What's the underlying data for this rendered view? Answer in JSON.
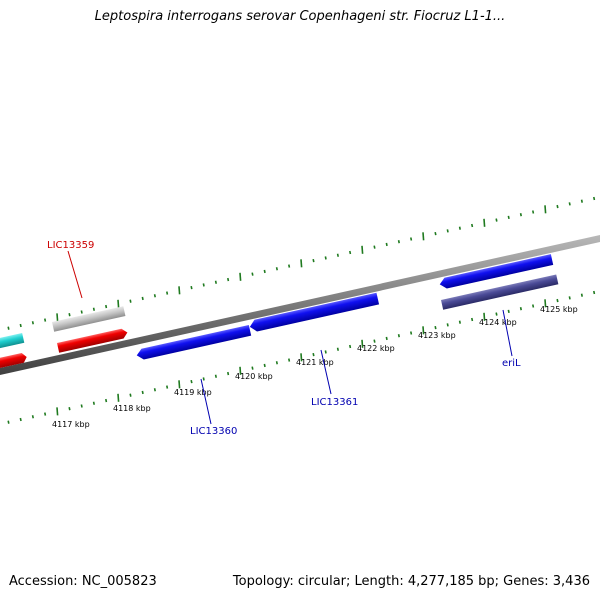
{
  "title": "Leptospira interrogans serovar Copenhageni str. Fiocruz L1-1...",
  "footer": {
    "accession": "Accession: NC_005823",
    "summary": "Topology: circular; Length: 4,277,185 bp; Genes: 3,436"
  },
  "colors": {
    "backbone": "#808080",
    "tick": "#1f7a1f",
    "forward_gene": "#0000e6",
    "reverse_gene": "#e60000",
    "pseudo_gene": "#c0c0c0",
    "rna_gene": "#2cd3d3",
    "dark_gene": "#3a3a8a",
    "red_label": "#cc0000",
    "blue_label": "#0000b0"
  },
  "ruler_labels": [
    "4117 kbp",
    "4118 kbp",
    "4119 kbp",
    "4120 kbp",
    "4121 kbp",
    "4122 kbp",
    "4123 kbp",
    "4124 kbp",
    "4125 kbp"
  ],
  "gene_labels": [
    {
      "id": "lic13359",
      "text": "LIC13359",
      "color": "red"
    },
    {
      "id": "lic13360",
      "text": "LIC13360",
      "color": "blue"
    },
    {
      "id": "lic13361",
      "text": "LIC13361",
      "color": "blue"
    },
    {
      "id": "eril",
      "text": "eriL",
      "color": "blue"
    }
  ]
}
